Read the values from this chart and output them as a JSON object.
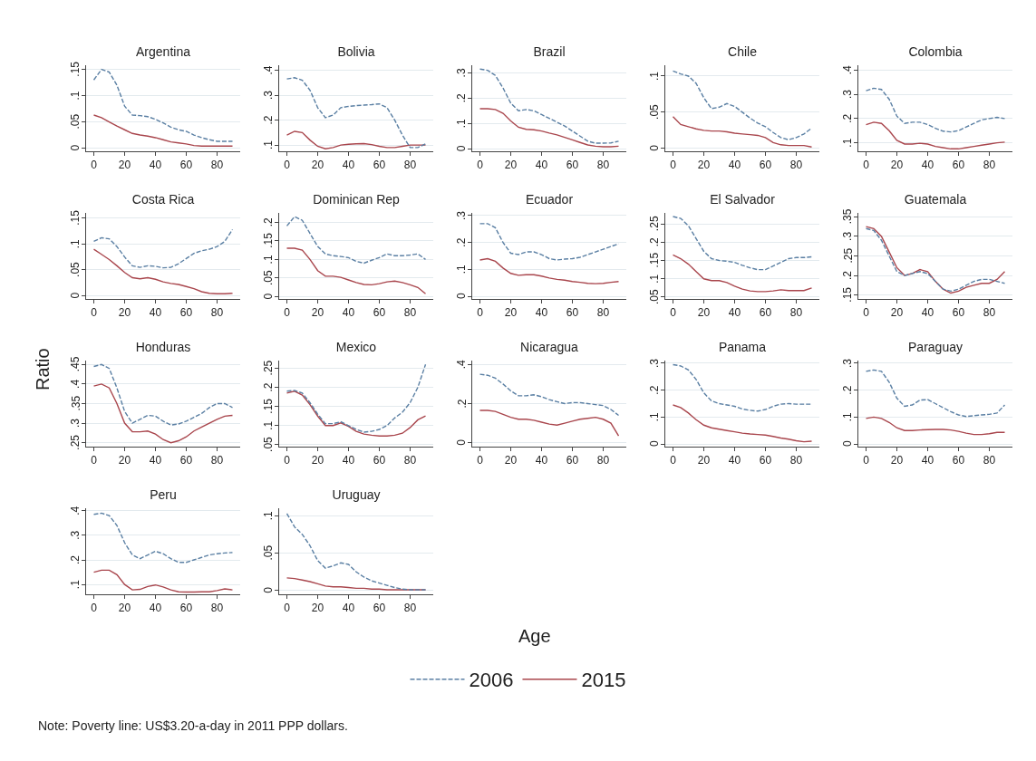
{
  "chart_data": [
    {
      "type": "line",
      "title": "Argentina",
      "grid": "y",
      "x": [
        0,
        5,
        10,
        15,
        20,
        25,
        30,
        35,
        40,
        45,
        50,
        55,
        60,
        65,
        70,
        75,
        80,
        85,
        90
      ],
      "xlim": [
        -5,
        95
      ],
      "xticks": [
        0,
        20,
        40,
        60,
        80
      ],
      "ylim": [
        -0.006,
        0.158
      ],
      "yticks": [
        {
          "value": 0,
          "label": "0"
        },
        {
          "value": 0.05,
          "label": ".05"
        },
        {
          "value": 0.1,
          "label": ".1"
        },
        {
          "value": 0.15,
          "label": ".15"
        }
      ],
      "series": [
        {
          "color": "#5a7fa3",
          "line_style": "dashed",
          "values": [
            0.13,
            0.15,
            0.145,
            0.12,
            0.08,
            0.063,
            0.062,
            0.06,
            0.055,
            0.048,
            0.04,
            0.035,
            0.032,
            0.025,
            0.02,
            0.016,
            0.013,
            0.013,
            0.013
          ]
        },
        {
          "color": "#a9464d",
          "line_style": "solid",
          "values": [
            0.063,
            0.058,
            0.05,
            0.042,
            0.035,
            0.028,
            0.025,
            0.023,
            0.02,
            0.016,
            0.012,
            0.01,
            0.008,
            0.005,
            0.004,
            0.004,
            0.004,
            0.004,
            0.004
          ]
        }
      ]
    },
    {
      "type": "line",
      "title": "Bolivia",
      "grid": "y",
      "x": [
        0,
        5,
        10,
        15,
        20,
        25,
        30,
        35,
        40,
        45,
        50,
        55,
        60,
        65,
        70,
        75,
        80,
        85,
        90
      ],
      "xlim": [
        -5,
        95
      ],
      "xticks": [
        0,
        20,
        40,
        60,
        80
      ],
      "ylim": [
        0.075,
        0.42
      ],
      "yticks": [
        {
          "value": 0.1,
          "label": ".1"
        },
        {
          "value": 0.2,
          "label": ".2"
        },
        {
          "value": 0.3,
          "label": ".3"
        },
        {
          "value": 0.4,
          "label": ".4"
        }
      ],
      "series": [
        {
          "color": "#5a7fa3",
          "line_style": "dashed",
          "values": [
            0.365,
            0.37,
            0.36,
            0.32,
            0.25,
            0.21,
            0.22,
            0.25,
            0.255,
            0.258,
            0.26,
            0.262,
            0.265,
            0.25,
            0.2,
            0.14,
            0.09,
            0.09,
            0.105
          ]
        },
        {
          "color": "#a9464d",
          "line_style": "solid",
          "values": [
            0.14,
            0.155,
            0.15,
            0.12,
            0.095,
            0.085,
            0.09,
            0.1,
            0.103,
            0.105,
            0.106,
            0.102,
            0.095,
            0.09,
            0.09,
            0.095,
            0.1,
            0.1,
            0.1
          ]
        }
      ]
    },
    {
      "type": "line",
      "title": "Brazil",
      "grid": "y",
      "x": [
        0,
        5,
        10,
        15,
        20,
        25,
        30,
        35,
        40,
        45,
        50,
        55,
        60,
        65,
        70,
        75,
        80,
        85,
        90
      ],
      "xlim": [
        -5,
        95
      ],
      "xticks": [
        0,
        20,
        40,
        60,
        80
      ],
      "ylim": [
        -0.01,
        0.33
      ],
      "yticks": [
        {
          "value": 0,
          "label": "0"
        },
        {
          "value": 0.1,
          "label": ".1"
        },
        {
          "value": 0.2,
          "label": ".2"
        },
        {
          "value": 0.3,
          "label": ".3"
        }
      ],
      "series": [
        {
          "color": "#5a7fa3",
          "line_style": "dashed",
          "values": [
            0.315,
            0.31,
            0.29,
            0.24,
            0.18,
            0.15,
            0.155,
            0.15,
            0.135,
            0.12,
            0.105,
            0.09,
            0.07,
            0.05,
            0.03,
            0.022,
            0.022,
            0.023,
            0.03
          ]
        },
        {
          "color": "#a9464d",
          "line_style": "solid",
          "values": [
            0.158,
            0.158,
            0.155,
            0.14,
            0.11,
            0.085,
            0.077,
            0.075,
            0.07,
            0.062,
            0.055,
            0.045,
            0.035,
            0.025,
            0.015,
            0.01,
            0.008,
            0.008,
            0.01
          ]
        }
      ]
    },
    {
      "type": "line",
      "title": "Chile",
      "grid": "y",
      "x": [
        0,
        5,
        10,
        15,
        20,
        25,
        30,
        35,
        40,
        45,
        50,
        55,
        60,
        65,
        70,
        75,
        80,
        85,
        90
      ],
      "xlim": [
        -5,
        95
      ],
      "xticks": [
        0,
        20,
        40,
        60,
        80
      ],
      "ylim": [
        -0.004,
        0.115
      ],
      "yticks": [
        {
          "value": 0,
          "label": "0"
        },
        {
          "value": 0.05,
          "label": ".05"
        },
        {
          "value": 0.1,
          "label": ".1"
        }
      ],
      "series": [
        {
          "color": "#5a7fa3",
          "line_style": "dashed",
          "values": [
            0.107,
            0.103,
            0.1,
            0.09,
            0.07,
            0.055,
            0.057,
            0.062,
            0.058,
            0.05,
            0.042,
            0.035,
            0.03,
            0.022,
            0.015,
            0.012,
            0.015,
            0.02,
            0.028
          ]
        },
        {
          "color": "#a9464d",
          "line_style": "solid",
          "values": [
            0.044,
            0.033,
            0.03,
            0.027,
            0.025,
            0.024,
            0.024,
            0.023,
            0.021,
            0.02,
            0.019,
            0.018,
            0.015,
            0.008,
            0.005,
            0.004,
            0.004,
            0.004,
            0.002
          ]
        }
      ]
    },
    {
      "type": "line",
      "title": "Colombia",
      "grid": "y",
      "x": [
        0,
        5,
        10,
        15,
        20,
        25,
        30,
        35,
        40,
        45,
        50,
        55,
        60,
        65,
        70,
        75,
        80,
        85,
        90
      ],
      "xlim": [
        -5,
        95
      ],
      "xticks": [
        0,
        20,
        40,
        60,
        80
      ],
      "ylim": [
        0.065,
        0.42
      ],
      "yticks": [
        {
          "value": 0.1,
          "label": ".1"
        },
        {
          "value": 0.2,
          "label": ".2"
        },
        {
          "value": 0.3,
          "label": ".3"
        },
        {
          "value": 0.4,
          "label": ".4"
        }
      ],
      "series": [
        {
          "color": "#5a7fa3",
          "line_style": "dashed",
          "values": [
            0.315,
            0.325,
            0.32,
            0.28,
            0.21,
            0.18,
            0.185,
            0.185,
            0.175,
            0.16,
            0.148,
            0.145,
            0.15,
            0.165,
            0.18,
            0.195,
            0.2,
            0.205,
            0.2
          ]
        },
        {
          "color": "#a9464d",
          "line_style": "solid",
          "values": [
            0.175,
            0.185,
            0.18,
            0.15,
            0.11,
            0.095,
            0.095,
            0.098,
            0.095,
            0.085,
            0.08,
            0.075,
            0.075,
            0.08,
            0.085,
            0.09,
            0.095,
            0.1,
            0.103
          ]
        }
      ]
    },
    {
      "type": "line",
      "title": "Costa Rica",
      "grid": "y",
      "x": [
        0,
        5,
        10,
        15,
        20,
        25,
        30,
        35,
        40,
        45,
        50,
        55,
        60,
        65,
        70,
        75,
        80,
        85,
        90
      ],
      "xlim": [
        -5,
        95
      ],
      "xticks": [
        0,
        20,
        40,
        60,
        80
      ],
      "ylim": [
        -0.006,
        0.16
      ],
      "yticks": [
        {
          "value": 0,
          "label": "0"
        },
        {
          "value": 0.05,
          "label": ".05"
        },
        {
          "value": 0.1,
          "label": ".1"
        },
        {
          "value": 0.15,
          "label": ".15"
        }
      ],
      "series": [
        {
          "color": "#5a7fa3",
          "line_style": "dashed",
          "values": [
            0.105,
            0.112,
            0.11,
            0.095,
            0.075,
            0.058,
            0.055,
            0.058,
            0.057,
            0.054,
            0.055,
            0.062,
            0.072,
            0.082,
            0.087,
            0.09,
            0.095,
            0.105,
            0.128
          ]
        },
        {
          "color": "#a9464d",
          "line_style": "solid",
          "values": [
            0.09,
            0.08,
            0.07,
            0.058,
            0.045,
            0.035,
            0.033,
            0.035,
            0.032,
            0.027,
            0.024,
            0.022,
            0.018,
            0.014,
            0.008,
            0.005,
            0.004,
            0.004,
            0.005
          ]
        }
      ]
    },
    {
      "type": "line",
      "title": "Dominican Rep",
      "grid": "y",
      "x": [
        0,
        5,
        10,
        15,
        20,
        25,
        30,
        35,
        40,
        45,
        50,
        55,
        60,
        65,
        70,
        75,
        80,
        85,
        90
      ],
      "xlim": [
        -5,
        95
      ],
      "xticks": [
        0,
        20,
        40,
        60,
        80
      ],
      "ylim": [
        -0.006,
        0.225
      ],
      "yticks": [
        {
          "value": 0,
          "label": "0"
        },
        {
          "value": 0.05,
          "label": ".05"
        },
        {
          "value": 0.1,
          "label": ".1"
        },
        {
          "value": 0.15,
          "label": ".15"
        },
        {
          "value": 0.2,
          "label": ".2"
        }
      ],
      "series": [
        {
          "color": "#5a7fa3",
          "line_style": "dashed",
          "values": [
            0.19,
            0.215,
            0.205,
            0.17,
            0.135,
            0.115,
            0.11,
            0.108,
            0.105,
            0.095,
            0.09,
            0.098,
            0.105,
            0.115,
            0.11,
            0.11,
            0.112,
            0.115,
            0.1
          ]
        },
        {
          "color": "#a9464d",
          "line_style": "solid",
          "values": [
            0.13,
            0.13,
            0.125,
            0.1,
            0.07,
            0.055,
            0.055,
            0.052,
            0.045,
            0.038,
            0.033,
            0.032,
            0.035,
            0.04,
            0.042,
            0.038,
            0.032,
            0.025,
            0.008
          ]
        }
      ]
    },
    {
      "type": "line",
      "title": "Ecuador",
      "grid": "y",
      "x": [
        0,
        5,
        10,
        15,
        20,
        25,
        30,
        35,
        40,
        45,
        50,
        55,
        60,
        65,
        70,
        75,
        80,
        85,
        90
      ],
      "xlim": [
        -5,
        95
      ],
      "xticks": [
        0,
        20,
        40,
        60,
        80
      ],
      "ylim": [
        -0.01,
        0.31
      ],
      "yticks": [
        {
          "value": 0,
          "label": "0"
        },
        {
          "value": 0.1,
          "label": ".1"
        },
        {
          "value": 0.2,
          "label": ".2"
        },
        {
          "value": 0.3,
          "label": ".3"
        }
      ],
      "series": [
        {
          "color": "#5a7fa3",
          "line_style": "dashed",
          "values": [
            0.27,
            0.27,
            0.255,
            0.2,
            0.16,
            0.155,
            0.165,
            0.165,
            0.155,
            0.14,
            0.135,
            0.138,
            0.14,
            0.145,
            0.155,
            0.165,
            0.175,
            0.185,
            0.195
          ]
        },
        {
          "color": "#a9464d",
          "line_style": "solid",
          "values": [
            0.135,
            0.14,
            0.13,
            0.105,
            0.085,
            0.078,
            0.08,
            0.08,
            0.075,
            0.068,
            0.063,
            0.06,
            0.055,
            0.052,
            0.048,
            0.047,
            0.048,
            0.052,
            0.055
          ]
        }
      ]
    },
    {
      "type": "line",
      "title": "El Salvador",
      "grid": "y",
      "x": [
        0,
        5,
        10,
        15,
        20,
        25,
        30,
        35,
        40,
        45,
        50,
        55,
        60,
        65,
        70,
        75,
        80,
        85,
        90
      ],
      "xlim": [
        -5,
        95
      ],
      "xticks": [
        0,
        20,
        40,
        60,
        80
      ],
      "ylim": [
        0.045,
        0.28
      ],
      "yticks": [
        {
          "value": 0.05,
          "label": ".05"
        },
        {
          "value": 0.1,
          "label": ".1"
        },
        {
          "value": 0.15,
          "label": ".15"
        },
        {
          "value": 0.2,
          "label": ".2"
        },
        {
          "value": 0.25,
          "label": ".25"
        }
      ],
      "series": [
        {
          "color": "#5a7fa3",
          "line_style": "dashed",
          "values": [
            0.27,
            0.265,
            0.245,
            0.21,
            0.175,
            0.155,
            0.15,
            0.148,
            0.145,
            0.137,
            0.13,
            0.125,
            0.125,
            0.135,
            0.145,
            0.155,
            0.158,
            0.158,
            0.16
          ]
        },
        {
          "color": "#a9464d",
          "line_style": "solid",
          "values": [
            0.165,
            0.155,
            0.14,
            0.12,
            0.1,
            0.095,
            0.095,
            0.09,
            0.08,
            0.072,
            0.067,
            0.065,
            0.065,
            0.067,
            0.07,
            0.068,
            0.068,
            0.068,
            0.075
          ]
        }
      ]
    },
    {
      "type": "line",
      "title": "Guatemala",
      "grid": "y",
      "x": [
        0,
        5,
        10,
        15,
        20,
        25,
        30,
        35,
        40,
        45,
        50,
        55,
        60,
        65,
        70,
        75,
        80,
        85,
        90
      ],
      "xlim": [
        -5,
        95
      ],
      "xticks": [
        0,
        20,
        40,
        60,
        80
      ],
      "ylim": [
        0.14,
        0.36
      ],
      "yticks": [
        {
          "value": 0.15,
          "label": ".15"
        },
        {
          "value": 0.2,
          "label": ".2"
        },
        {
          "value": 0.25,
          "label": ".25"
        },
        {
          "value": 0.3,
          "label": ".3"
        },
        {
          "value": 0.35,
          "label": ".35"
        }
      ],
      "series": [
        {
          "color": "#5a7fa3",
          "line_style": "dashed",
          "values": [
            0.32,
            0.315,
            0.29,
            0.25,
            0.21,
            0.2,
            0.205,
            0.21,
            0.205,
            0.185,
            0.165,
            0.16,
            0.165,
            0.175,
            0.185,
            0.19,
            0.19,
            0.185,
            0.18
          ]
        },
        {
          "color": "#a9464d",
          "line_style": "solid",
          "values": [
            0.325,
            0.32,
            0.3,
            0.26,
            0.22,
            0.2,
            0.205,
            0.215,
            0.21,
            0.185,
            0.165,
            0.155,
            0.16,
            0.17,
            0.175,
            0.18,
            0.18,
            0.19,
            0.21
          ]
        }
      ]
    },
    {
      "type": "line",
      "title": "Honduras",
      "grid": "y",
      "x": [
        0,
        5,
        10,
        15,
        20,
        25,
        30,
        35,
        40,
        45,
        50,
        55,
        60,
        65,
        70,
        75,
        80,
        85,
        90
      ],
      "xlim": [
        -5,
        95
      ],
      "xticks": [
        0,
        20,
        40,
        60,
        80
      ],
      "ylim": [
        0.24,
        0.46
      ],
      "yticks": [
        {
          "value": 0.25,
          "label": ".25"
        },
        {
          "value": 0.3,
          "label": ".3"
        },
        {
          "value": 0.35,
          "label": ".35"
        },
        {
          "value": 0.4,
          "label": ".4"
        },
        {
          "value": 0.45,
          "label": ".45"
        }
      ],
      "series": [
        {
          "color": "#5a7fa3",
          "line_style": "dashed",
          "values": [
            0.445,
            0.45,
            0.44,
            0.39,
            0.33,
            0.3,
            0.31,
            0.32,
            0.318,
            0.305,
            0.295,
            0.298,
            0.305,
            0.315,
            0.325,
            0.34,
            0.35,
            0.35,
            0.34
          ]
        },
        {
          "color": "#a9464d",
          "line_style": "solid",
          "values": [
            0.395,
            0.4,
            0.39,
            0.35,
            0.3,
            0.278,
            0.278,
            0.28,
            0.272,
            0.258,
            0.25,
            0.255,
            0.265,
            0.28,
            0.29,
            0.3,
            0.31,
            0.318,
            0.32
          ]
        }
      ]
    },
    {
      "type": "line",
      "title": "Mexico",
      "grid": "y",
      "x": [
        0,
        5,
        10,
        15,
        20,
        25,
        30,
        35,
        40,
        45,
        50,
        55,
        60,
        65,
        70,
        75,
        80,
        85,
        90
      ],
      "xlim": [
        -5,
        95
      ],
      "xticks": [
        0,
        20,
        40,
        60,
        80
      ],
      "ylim": [
        0.045,
        0.27
      ],
      "yticks": [
        {
          "value": 0.05,
          "label": ".05"
        },
        {
          "value": 0.1,
          "label": ".1"
        },
        {
          "value": 0.15,
          "label": ".15"
        },
        {
          "value": 0.2,
          "label": ".2"
        },
        {
          "value": 0.25,
          "label": ".25"
        }
      ],
      "series": [
        {
          "color": "#5a7fa3",
          "line_style": "dashed",
          "values": [
            0.19,
            0.192,
            0.185,
            0.16,
            0.13,
            0.105,
            0.105,
            0.11,
            0.1,
            0.09,
            0.083,
            0.085,
            0.09,
            0.1,
            0.12,
            0.135,
            0.16,
            0.2,
            0.26
          ]
        },
        {
          "color": "#a9464d",
          "line_style": "solid",
          "values": [
            0.185,
            0.19,
            0.18,
            0.155,
            0.125,
            0.1,
            0.1,
            0.107,
            0.098,
            0.085,
            0.078,
            0.075,
            0.073,
            0.073,
            0.075,
            0.08,
            0.095,
            0.115,
            0.125
          ]
        }
      ]
    },
    {
      "type": "line",
      "title": "Nicaragua",
      "grid": "y",
      "x": [
        0,
        5,
        10,
        15,
        20,
        25,
        30,
        35,
        40,
        45,
        50,
        55,
        60,
        65,
        70,
        75,
        80,
        85,
        90
      ],
      "xlim": [
        -5,
        95
      ],
      "xticks": [
        0,
        20,
        40,
        60,
        80
      ],
      "ylim": [
        -0.02,
        0.42
      ],
      "yticks": [
        {
          "value": 0,
          "label": "0"
        },
        {
          "value": 0.2,
          "label": ".2"
        },
        {
          "value": 0.4,
          "label": ".4"
        }
      ],
      "series": [
        {
          "color": "#5a7fa3",
          "line_style": "dashed",
          "values": [
            0.35,
            0.345,
            0.33,
            0.3,
            0.265,
            0.24,
            0.24,
            0.245,
            0.235,
            0.22,
            0.21,
            0.2,
            0.205,
            0.205,
            0.2,
            0.195,
            0.19,
            0.17,
            0.14
          ]
        },
        {
          "color": "#a9464d",
          "line_style": "solid",
          "values": [
            0.165,
            0.165,
            0.16,
            0.145,
            0.13,
            0.12,
            0.12,
            0.115,
            0.105,
            0.095,
            0.09,
            0.1,
            0.11,
            0.12,
            0.125,
            0.13,
            0.12,
            0.1,
            0.035
          ]
        }
      ]
    },
    {
      "type": "line",
      "title": "Panama",
      "grid": "y",
      "x": [
        0,
        5,
        10,
        15,
        20,
        25,
        30,
        35,
        40,
        45,
        50,
        55,
        60,
        65,
        70,
        75,
        80,
        85,
        90
      ],
      "xlim": [
        -5,
        95
      ],
      "xticks": [
        0,
        20,
        40,
        60,
        80
      ],
      "ylim": [
        -0.01,
        0.31
      ],
      "yticks": [
        {
          "value": 0,
          "label": "0"
        },
        {
          "value": 0.1,
          "label": ".1"
        },
        {
          "value": 0.2,
          "label": ".2"
        },
        {
          "value": 0.3,
          "label": ".3"
        }
      ],
      "series": [
        {
          "color": "#5a7fa3",
          "line_style": "dashed",
          "values": [
            0.295,
            0.29,
            0.275,
            0.24,
            0.19,
            0.16,
            0.15,
            0.145,
            0.14,
            0.13,
            0.125,
            0.122,
            0.128,
            0.14,
            0.148,
            0.15,
            0.148,
            0.148,
            0.148
          ]
        },
        {
          "color": "#a9464d",
          "line_style": "solid",
          "values": [
            0.145,
            0.135,
            0.115,
            0.09,
            0.07,
            0.06,
            0.055,
            0.05,
            0.045,
            0.04,
            0.037,
            0.035,
            0.033,
            0.028,
            0.022,
            0.018,
            0.012,
            0.008,
            0.01
          ]
        }
      ]
    },
    {
      "type": "line",
      "title": "Paraguay",
      "grid": "y",
      "x": [
        0,
        5,
        10,
        15,
        20,
        25,
        30,
        35,
        40,
        45,
        50,
        55,
        60,
        65,
        70,
        75,
        80,
        85,
        90
      ],
      "xlim": [
        -5,
        95
      ],
      "xticks": [
        0,
        20,
        40,
        60,
        80
      ],
      "ylim": [
        -0.01,
        0.31
      ],
      "yticks": [
        {
          "value": 0,
          "label": "0"
        },
        {
          "value": 0.1,
          "label": ".1"
        },
        {
          "value": 0.2,
          "label": ".2"
        },
        {
          "value": 0.3,
          "label": ".3"
        }
      ],
      "series": [
        {
          "color": "#5a7fa3",
          "line_style": "dashed",
          "values": [
            0.27,
            0.275,
            0.27,
            0.23,
            0.17,
            0.14,
            0.145,
            0.163,
            0.165,
            0.15,
            0.135,
            0.12,
            0.108,
            0.102,
            0.105,
            0.108,
            0.11,
            0.115,
            0.145
          ]
        },
        {
          "color": "#a9464d",
          "line_style": "solid",
          "values": [
            0.095,
            0.1,
            0.095,
            0.08,
            0.06,
            0.05,
            0.05,
            0.052,
            0.053,
            0.054,
            0.054,
            0.052,
            0.047,
            0.04,
            0.035,
            0.035,
            0.038,
            0.043,
            0.043
          ]
        }
      ]
    },
    {
      "type": "line",
      "title": "Peru",
      "grid": "y",
      "x": [
        0,
        5,
        10,
        15,
        20,
        25,
        30,
        35,
        40,
        45,
        50,
        55,
        60,
        65,
        70,
        75,
        80,
        85,
        90
      ],
      "xlim": [
        -5,
        95
      ],
      "xticks": [
        0,
        20,
        40,
        60,
        80
      ],
      "ylim": [
        0.06,
        0.41
      ],
      "yticks": [
        {
          "value": 0.1,
          "label": ".1"
        },
        {
          "value": 0.2,
          "label": ".2"
        },
        {
          "value": 0.3,
          "label": ".3"
        },
        {
          "value": 0.4,
          "label": ".4"
        }
      ],
      "series": [
        {
          "color": "#5a7fa3",
          "line_style": "dashed",
          "values": [
            0.385,
            0.39,
            0.38,
            0.34,
            0.27,
            0.22,
            0.205,
            0.22,
            0.235,
            0.225,
            0.205,
            0.19,
            0.19,
            0.2,
            0.21,
            0.22,
            0.225,
            0.228,
            0.23
          ]
        },
        {
          "color": "#a9464d",
          "line_style": "solid",
          "values": [
            0.15,
            0.158,
            0.158,
            0.14,
            0.1,
            0.078,
            0.08,
            0.092,
            0.098,
            0.09,
            0.078,
            0.07,
            0.069,
            0.069,
            0.07,
            0.07,
            0.075,
            0.082,
            0.078
          ]
        }
      ]
    },
    {
      "type": "line",
      "title": "Uruguay",
      "grid": "y",
      "x": [
        0,
        5,
        10,
        15,
        20,
        25,
        30,
        35,
        40,
        45,
        50,
        55,
        60,
        65,
        70,
        75,
        80,
        85,
        90
      ],
      "xlim": [
        -5,
        95
      ],
      "xticks": [
        0,
        20,
        40,
        60,
        80
      ],
      "ylim": [
        -0.005,
        0.11
      ],
      "yticks": [
        {
          "value": 0,
          "label": "0"
        },
        {
          "value": 0.05,
          "label": ".05"
        },
        {
          "value": 0.1,
          "label": ".1"
        }
      ],
      "series": [
        {
          "color": "#5a7fa3",
          "line_style": "dashed",
          "values": [
            0.103,
            0.085,
            0.075,
            0.06,
            0.04,
            0.03,
            0.033,
            0.037,
            0.035,
            0.025,
            0.018,
            0.013,
            0.01,
            0.007,
            0.004,
            0.002,
            0.001,
            0.001,
            0.001
          ]
        },
        {
          "color": "#a9464d",
          "line_style": "solid",
          "values": [
            0.017,
            0.016,
            0.014,
            0.012,
            0.009,
            0.006,
            0.005,
            0.005,
            0.004,
            0.003,
            0.003,
            0.002,
            0.002,
            0.001,
            0.001,
            0.001,
            0.001,
            0.001,
            0.001
          ]
        }
      ]
    },
    {
      "type": "other",
      "xlabel": "Age",
      "ylabel": "Ratio",
      "legend": "bottom",
      "annotations": [
        "Note: Poverty line: US$3.20-a-day in 2011 PPP dollars."
      ],
      "series": [
        {
          "name": "2006",
          "color": "#5a7fa3",
          "line_style": "dashed"
        },
        {
          "name": "2015",
          "color": "#a9464d",
          "line_style": "solid"
        }
      ]
    }
  ]
}
